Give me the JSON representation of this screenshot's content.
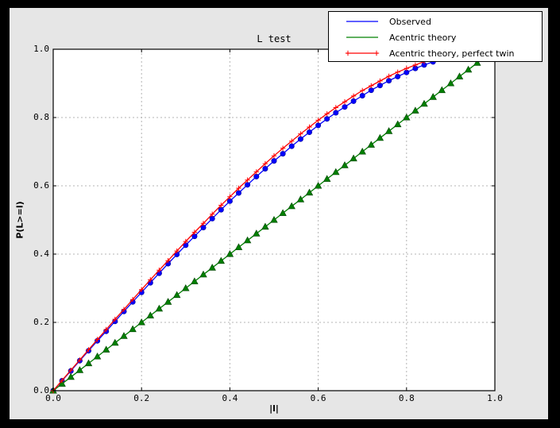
{
  "figure": {
    "background": "#000000",
    "canvas_color": "#e6e6e6",
    "plot_bg": "#ffffff",
    "grid_color": "#b4b4b4",
    "frame_color": "#000000"
  },
  "chart_data": {
    "type": "line",
    "title": "L test",
    "xlabel": "|l|",
    "ylabel": "P(L>=l)",
    "xlim": [
      0,
      1
    ],
    "ylim": [
      0,
      1
    ],
    "grid": "dashed, at 0.2 intervals, none at edges",
    "ticks": "inward on all four sides",
    "legend_position": "upper right, overlapping plot top",
    "xtick_labels": [
      "0.0",
      "0.2",
      "0.4",
      "0.6",
      "0.8",
      "1.0"
    ],
    "ytick_labels": [
      "0.0",
      "0.2",
      "0.4",
      "0.6",
      "0.8",
      "1.0"
    ],
    "x": [
      0,
      0.02,
      0.04,
      0.06,
      0.08,
      0.1,
      0.12,
      0.14,
      0.16,
      0.18,
      0.2,
      0.22,
      0.24,
      0.26,
      0.28,
      0.3,
      0.32,
      0.34,
      0.36,
      0.38,
      0.4,
      0.42,
      0.44,
      0.46,
      0.48,
      0.5,
      0.52,
      0.54,
      0.56,
      0.58,
      0.6,
      0.62,
      0.64,
      0.66,
      0.68,
      0.7,
      0.72,
      0.74,
      0.76,
      0.78,
      0.8,
      0.82,
      0.84,
      0.86,
      0.88,
      0.9,
      0.92,
      0.94,
      0.96,
      0.98,
      1
    ],
    "series": [
      {
        "name": "Observed",
        "color": "#0000ff",
        "marker": "circle",
        "legend_marker": "none",
        "values": [
          0,
          0.029,
          0.058,
          0.088,
          0.117,
          0.146,
          0.174,
          0.203,
          0.232,
          0.26,
          0.288,
          0.316,
          0.344,
          0.372,
          0.399,
          0.426,
          0.452,
          0.478,
          0.504,
          0.53,
          0.555,
          0.579,
          0.603,
          0.627,
          0.65,
          0.673,
          0.694,
          0.716,
          0.737,
          0.757,
          0.777,
          0.796,
          0.814,
          0.831,
          0.848,
          0.864,
          0.88,
          0.894,
          0.908,
          0.92,
          0.932,
          0.944,
          0.954,
          0.963,
          0.971,
          0.979,
          0.985,
          0.99,
          0.995,
          0.998,
          1
        ]
      },
      {
        "name": "Acentric theory",
        "color": "#008000",
        "marker": "triangle",
        "legend_marker": "none",
        "values": [
          0,
          0.02,
          0.04,
          0.06,
          0.08,
          0.1,
          0.12,
          0.14,
          0.16,
          0.18,
          0.2,
          0.22,
          0.24,
          0.26,
          0.28,
          0.3,
          0.32,
          0.34,
          0.36,
          0.38,
          0.4,
          0.42,
          0.44,
          0.46,
          0.48,
          0.5,
          0.52,
          0.54,
          0.56,
          0.58,
          0.6,
          0.62,
          0.64,
          0.66,
          0.68,
          0.7,
          0.72,
          0.74,
          0.76,
          0.78,
          0.8,
          0.82,
          0.84,
          0.86,
          0.88,
          0.9,
          0.92,
          0.94,
          0.96,
          0.98,
          1
        ]
      },
      {
        "name": "Acentric theory, perfect twin",
        "color": "#ff0000",
        "marker": "plus",
        "legend_marker": "plus",
        "values": [
          0,
          0.03,
          0.06,
          0.09,
          0.12,
          0.15,
          0.179,
          0.209,
          0.238,
          0.267,
          0.296,
          0.325,
          0.353,
          0.381,
          0.409,
          0.437,
          0.464,
          0.49,
          0.517,
          0.543,
          0.568,
          0.593,
          0.617,
          0.641,
          0.665,
          0.688,
          0.71,
          0.731,
          0.752,
          0.772,
          0.792,
          0.811,
          0.829,
          0.846,
          0.863,
          0.879,
          0.893,
          0.907,
          0.921,
          0.933,
          0.944,
          0.954,
          0.964,
          0.972,
          0.979,
          0.986,
          0.991,
          0.995,
          0.998,
          0.999,
          1
        ]
      }
    ]
  }
}
